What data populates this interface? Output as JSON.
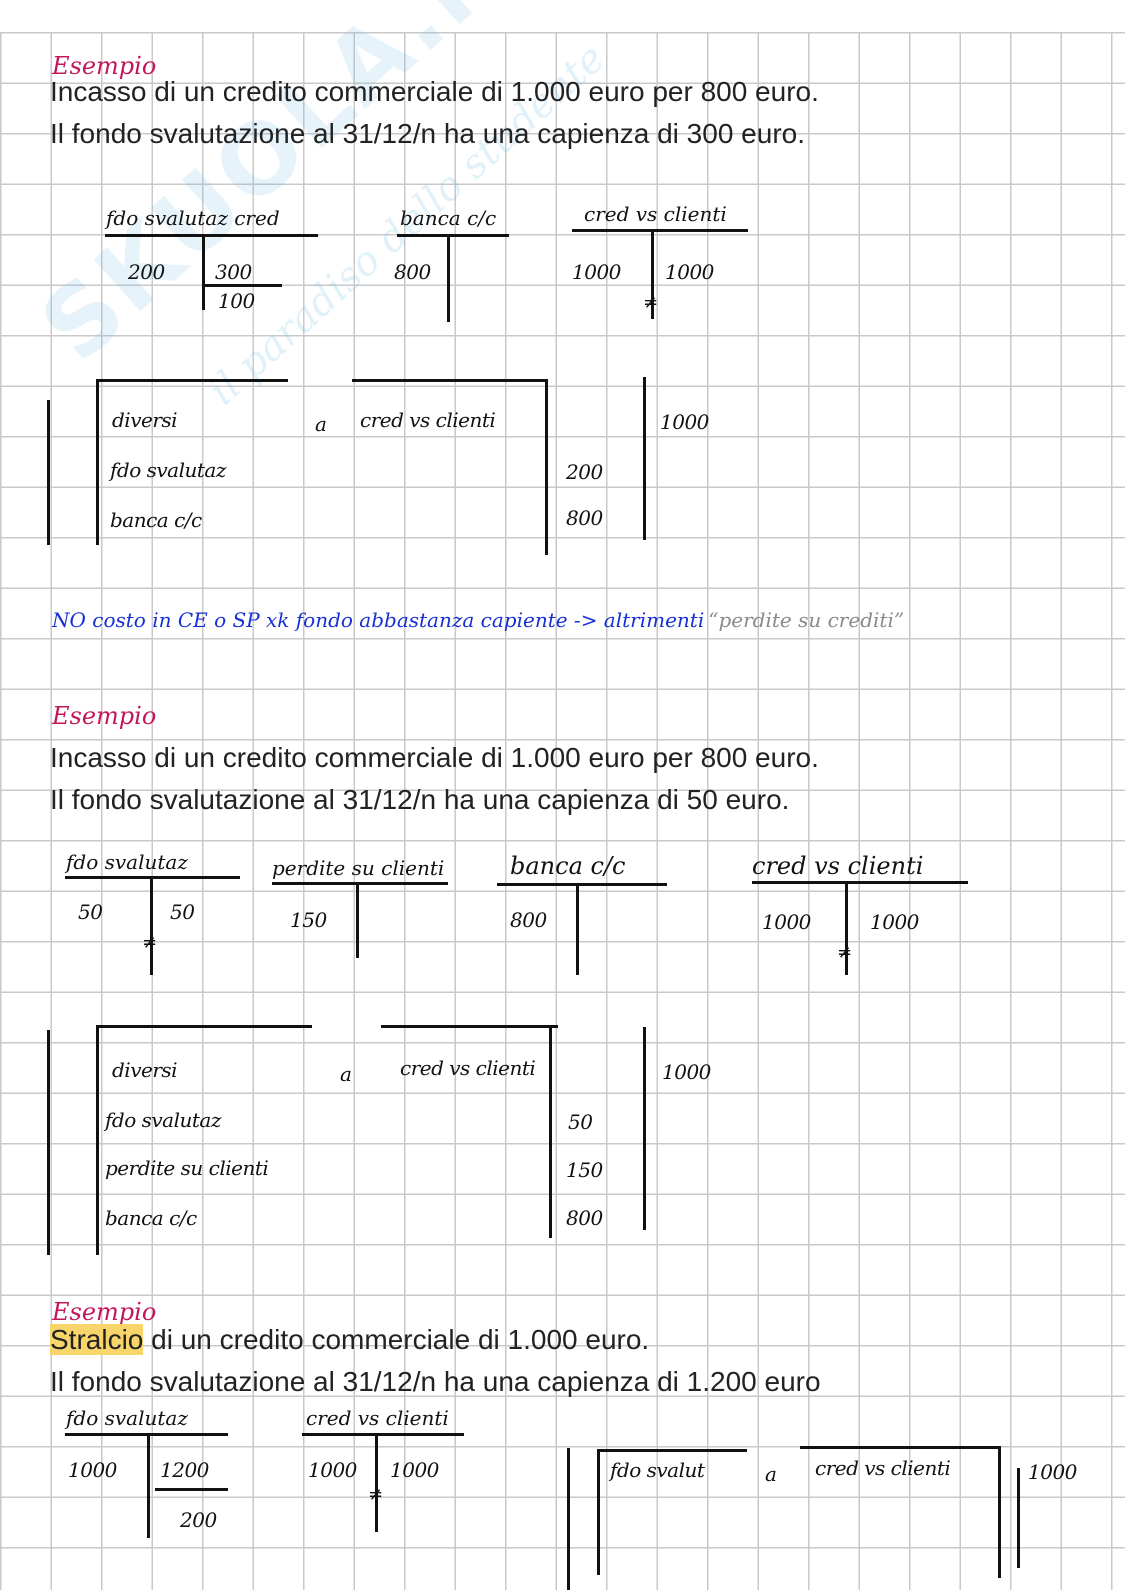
{
  "watermark": {
    "brand": "SKUOLA.net",
    "tagline": "il paradiso dello studente"
  },
  "colors": {
    "heading": "#c2185b",
    "note": "#1730d6",
    "note_quote": "#8a8a8a",
    "highlight": "#f7d56b",
    "ink": "#111111"
  },
  "examples": [
    {
      "heading": "Esempio",
      "line1": "Incasso di un credito commerciale di 1.000 euro per 800 euro.",
      "line2": "Il fondo svalutazione al 31/12/n ha una capienza di 300 euro.",
      "accounts": [
        {
          "title": "fdo svalutaz cred",
          "debit": [
            "200"
          ],
          "credit": [
            "300"
          ],
          "balance": "100"
        },
        {
          "title": "banca c/c",
          "debit": [
            "800"
          ],
          "credit": []
        },
        {
          "title": "cred vs clienti",
          "debit": [
            "1000"
          ],
          "credit": [
            "1000"
          ],
          "closed_mark": "≠"
        }
      ],
      "journal": {
        "debit_label": "diversi",
        "a": "a",
        "credit_label": "cred vs clienti",
        "credit_amount": "1000",
        "rows": [
          {
            "account": "fdo svalutaz",
            "amount": "200"
          },
          {
            "account": "banca c/c",
            "amount": "800"
          }
        ]
      },
      "note": {
        "text": "NO costo in CE o SP xk fondo abbastanza capiente -> altrimenti",
        "quote": "“perdite su crediti”"
      }
    },
    {
      "heading": "Esempio",
      "line1": "Incasso di un credito commerciale di 1.000 euro per 800 euro.",
      "line2": "Il fondo svalutazione al 31/12/n ha una capienza di 50 euro.",
      "accounts": [
        {
          "title": "fdo svalutaz",
          "debit": [
            "50"
          ],
          "credit": [
            "50"
          ],
          "closed_mark": "≠"
        },
        {
          "title": "perdite su clienti",
          "debit": [
            "150"
          ],
          "credit": []
        },
        {
          "title": "banca c/c",
          "debit": [
            "800"
          ],
          "credit": []
        },
        {
          "title": "cred vs clienti",
          "debit": [
            "1000"
          ],
          "credit": [
            "1000"
          ],
          "closed_mark": "≠"
        }
      ],
      "journal": {
        "debit_label": "diversi",
        "a": "a",
        "credit_label": "cred vs clienti",
        "credit_amount": "1000",
        "rows": [
          {
            "account": "fdo svalutaz",
            "amount": "50"
          },
          {
            "account": "perdite su clienti",
            "amount": "150"
          },
          {
            "account": "banca c/c",
            "amount": "800"
          }
        ]
      }
    },
    {
      "heading": "Esempio",
      "line1_highlight": "Stralcio",
      "line1": " di un credito commerciale di 1.000 euro.",
      "line2": "Il fondo svalutazione al 31/12/n ha una capienza di 1.200 euro",
      "accounts": [
        {
          "title": "fdo svalutaz",
          "debit": [
            "1000"
          ],
          "credit": [
            "1200"
          ],
          "balance": "200"
        },
        {
          "title": "cred vs clienti",
          "debit": [
            "1000"
          ],
          "credit": [
            "1000"
          ],
          "closed_mark": "≠"
        }
      ],
      "journal": {
        "debit_label": "fdo svalut",
        "a": "a",
        "credit_label": "cred vs clienti",
        "credit_amount": "1000"
      }
    }
  ]
}
